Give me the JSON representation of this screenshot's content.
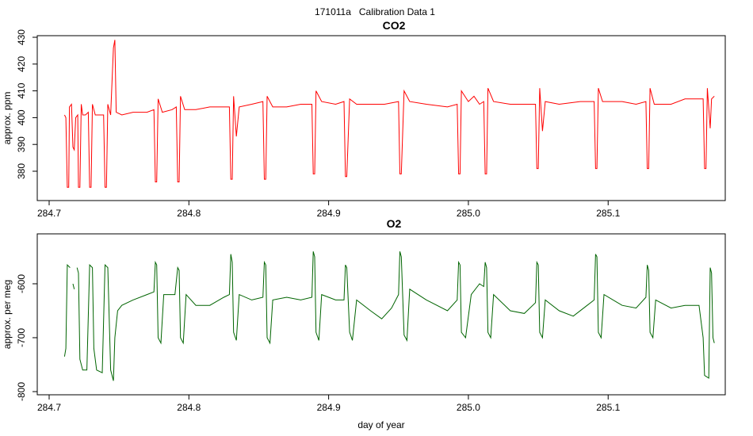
{
  "title": "171011a   Calibration Data 1",
  "chart_data": [
    {
      "type": "line",
      "title": "CO2",
      "ylabel": "approx. ppm",
      "color": "#ff0000",
      "xlim": [
        284.6915,
        285.1838
      ],
      "ylim": [
        369.05,
        430.6
      ],
      "xticks": [
        284.7,
        284.8,
        284.9,
        {
          "value": 285,
          "label": "285.0"
        },
        285.1
      ],
      "yticks": [
        380,
        390,
        400,
        410,
        420,
        430
      ],
      "x": [
        284.711,
        284.712,
        284.713,
        284.714,
        284.7145,
        284.716,
        284.717,
        284.718,
        284.719,
        284.7205,
        284.721,
        284.722,
        284.723,
        284.724,
        284.726,
        284.728,
        284.729,
        284.73,
        284.731,
        284.733,
        284.736,
        284.739,
        284.74,
        284.741,
        284.742,
        284.744,
        284.746,
        284.747,
        284.748,
        284.752,
        284.76,
        284.77,
        284.775,
        284.776,
        284.777,
        284.778,
        284.781,
        284.788,
        284.791,
        284.792,
        284.793,
        284.794,
        284.797,
        284.805,
        284.815,
        284.825,
        284.829,
        284.83,
        284.831,
        284.832,
        284.834,
        284.836,
        284.845,
        284.853,
        284.854,
        284.855,
        284.856,
        284.86,
        284.87,
        284.88,
        284.888,
        284.889,
        284.89,
        284.891,
        284.895,
        284.905,
        284.911,
        284.912,
        284.913,
        284.915,
        284.92,
        284.93,
        284.94,
        284.95,
        284.951,
        284.952,
        284.954,
        284.958,
        284.97,
        284.985,
        284.992,
        284.993,
        284.994,
        284.995,
        285.0,
        285.004,
        285.008,
        285.011,
        285.012,
        285.013,
        285.014,
        285.018,
        285.03,
        285.04,
        285.048,
        285.049,
        285.05,
        285.051,
        285.053,
        285.055,
        285.065,
        285.08,
        285.09,
        285.091,
        285.092,
        285.093,
        285.096,
        285.11,
        285.12,
        285.127,
        285.128,
        285.129,
        285.13,
        285.133,
        285.145,
        285.155,
        285.168,
        285.169,
        285.17,
        285.171,
        285.173,
        285.174,
        285.176
      ],
      "values": [
        401,
        400,
        374,
        374,
        404,
        405,
        389,
        388,
        400,
        401,
        374,
        374,
        405,
        401,
        401,
        402,
        374,
        374,
        405,
        401,
        401,
        401,
        374,
        374,
        405,
        401,
        426,
        429,
        402,
        401,
        402,
        402,
        403,
        376,
        376,
        407,
        402,
        403,
        404,
        376,
        376,
        408,
        403,
        403,
        404,
        404,
        404,
        377,
        377,
        408,
        393,
        404,
        405,
        406,
        377,
        377,
        408,
        404,
        404,
        405,
        405,
        379,
        379,
        410,
        406,
        405,
        406,
        378,
        378,
        407,
        405,
        405,
        405,
        406,
        379,
        379,
        410,
        406,
        405,
        404,
        405,
        379,
        379,
        410,
        406,
        408,
        405,
        406,
        379,
        379,
        411,
        406,
        405,
        405,
        405,
        381,
        381,
        411,
        395,
        406,
        405,
        406,
        406,
        381,
        381,
        411,
        406,
        406,
        405,
        406,
        381,
        381,
        411,
        405,
        405,
        407,
        407,
        381,
        381,
        411,
        396,
        407,
        408
      ]
    },
    {
      "type": "line",
      "title": "O2",
      "ylabel": "approx. per meg",
      "xlabel": "day of year",
      "color": "#006400",
      "xlim": [
        284.6915,
        285.1838
      ],
      "ylim": [
        -805.9,
        -507.4
      ],
      "xticks": [
        284.7,
        284.8,
        284.9,
        {
          "value": 285,
          "label": "285.0"
        },
        285.1
      ],
      "yticks": [
        -800,
        -700,
        -600
      ],
      "x": [
        284.711,
        284.712,
        284.713,
        284.715,
        284.716,
        284.717,
        284.718,
        284.719,
        284.72,
        284.721,
        284.722,
        284.724,
        284.727,
        284.729,
        284.731,
        284.732,
        284.734,
        284.738,
        284.74,
        284.742,
        284.744,
        284.746,
        284.747,
        284.749,
        284.752,
        284.76,
        284.77,
        284.775,
        284.776,
        284.777,
        284.778,
        284.78,
        284.782,
        284.79,
        284.792,
        284.793,
        284.794,
        284.796,
        284.798,
        284.805,
        284.815,
        284.825,
        284.829,
        284.83,
        284.831,
        284.832,
        284.834,
        284.836,
        284.845,
        284.853,
        284.854,
        284.855,
        284.856,
        284.858,
        284.86,
        284.87,
        284.88,
        284.888,
        284.889,
        284.89,
        284.891,
        284.893,
        284.895,
        284.905,
        284.911,
        284.912,
        284.913,
        284.915,
        284.917,
        284.92,
        284.93,
        284.938,
        284.945,
        284.95,
        284.951,
        284.952,
        284.954,
        284.956,
        284.958,
        284.97,
        284.985,
        284.992,
        284.993,
        284.994,
        284.995,
        284.998,
        285.002,
        285.008,
        285.011,
        285.012,
        285.013,
        285.014,
        285.016,
        285.018,
        285.03,
        285.04,
        285.048,
        285.049,
        285.05,
        285.051,
        285.053,
        285.055,
        285.065,
        285.075,
        285.085,
        285.09,
        285.091,
        285.092,
        285.093,
        285.095,
        285.097,
        285.11,
        285.12,
        285.127,
        285.128,
        285.129,
        285.13,
        285.132,
        285.134,
        285.145,
        285.155,
        285.165,
        285.168,
        285.169,
        285.172,
        285.173,
        285.174,
        285.175,
        285.176
      ],
      "values": [
        -735,
        -720,
        -565,
        -570,
        null,
        -600,
        -610,
        null,
        -570,
        -580,
        -740,
        -760,
        -760,
        -565,
        -570,
        -720,
        -760,
        -765,
        -565,
        -570,
        -760,
        -780,
        -700,
        -650,
        -640,
        -630,
        -620,
        -615,
        -560,
        -565,
        -700,
        -710,
        -620,
        -620,
        -570,
        -575,
        -700,
        -710,
        -620,
        -640,
        -640,
        -625,
        -620,
        -545,
        -560,
        -690,
        -705,
        -620,
        -630,
        -625,
        -560,
        -565,
        -700,
        -710,
        -630,
        -625,
        -630,
        -625,
        -540,
        -550,
        -690,
        -705,
        -620,
        -630,
        -630,
        -565,
        -570,
        -690,
        -705,
        -630,
        -650,
        -665,
        -645,
        -620,
        -540,
        -550,
        -695,
        -705,
        -610,
        -630,
        -650,
        -630,
        -560,
        -565,
        -690,
        -700,
        -620,
        -600,
        -605,
        -560,
        -570,
        -690,
        -700,
        -620,
        -650,
        -655,
        -635,
        -560,
        -565,
        -690,
        -700,
        -630,
        -650,
        -660,
        -640,
        -630,
        -545,
        -550,
        -690,
        -700,
        -620,
        -640,
        -645,
        -625,
        -565,
        -575,
        -690,
        -700,
        -630,
        -645,
        -640,
        -640,
        -700,
        -770,
        -775,
        -570,
        -580,
        -700,
        -710
      ]
    }
  ]
}
